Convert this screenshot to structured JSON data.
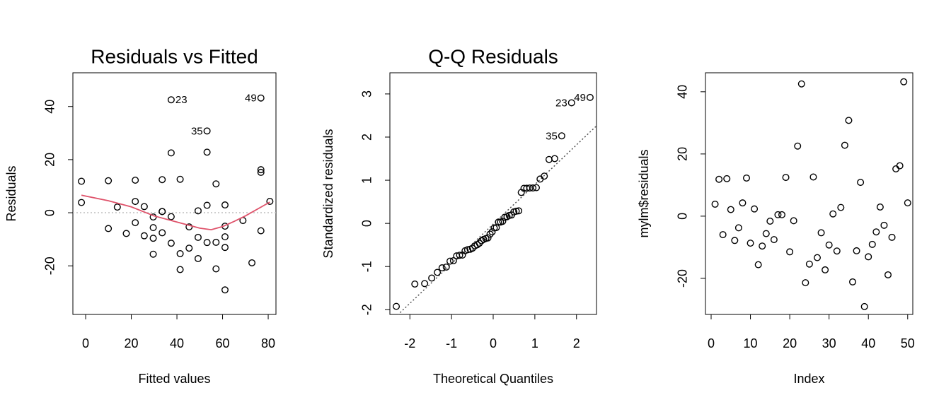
{
  "chart_data": [
    {
      "type": "scatter",
      "title": "Residuals vs Fitted",
      "x_label": "Fitted values",
      "y_label": "Residuals",
      "color": "#000000",
      "x": [
        -1.849,
        -1.849,
        9.948,
        9.948,
        13.88,
        17.813,
        21.745,
        21.745,
        21.745,
        25.677,
        25.677,
        29.61,
        29.61,
        29.61,
        29.61,
        33.542,
        33.542,
        33.542,
        33.542,
        37.474,
        37.474,
        37.474,
        37.474,
        41.407,
        41.407,
        41.407,
        45.339,
        45.339,
        49.272,
        49.272,
        49.272,
        53.204,
        53.204,
        53.204,
        53.204,
        57.136,
        57.136,
        57.136,
        61.069,
        61.069,
        61.069,
        61.069,
        61.069,
        68.934,
        72.866,
        76.798,
        76.798,
        76.798,
        76.798,
        80.731
      ],
      "y": [
        3.849,
        11.849,
        -5.948,
        12.052,
        2.12,
        -7.813,
        -3.745,
        4.255,
        12.255,
        -8.677,
        2.323,
        -15.61,
        -9.61,
        -5.61,
        -1.61,
        -7.542,
        0.458,
        0.458,
        12.458,
        -11.474,
        -1.474,
        22.526,
        42.526,
        -21.407,
        -15.407,
        12.593,
        -13.339,
        -5.339,
        -17.272,
        -9.272,
        0.728,
        -11.204,
        2.796,
        22.796,
        30.796,
        -21.136,
        -11.136,
        10.864,
        -29.069,
        -13.069,
        -9.069,
        -5.069,
        2.931,
        -2.934,
        -18.866,
        -6.798,
        15.202,
        16.202,
        43.202,
        4.269
      ],
      "point_labels": [
        null,
        null,
        null,
        null,
        null,
        null,
        null,
        null,
        null,
        null,
        null,
        null,
        null,
        null,
        null,
        null,
        null,
        null,
        null,
        null,
        null,
        null,
        "23",
        null,
        null,
        null,
        null,
        null,
        null,
        null,
        null,
        null,
        null,
        null,
        "35",
        null,
        null,
        null,
        null,
        null,
        null,
        null,
        null,
        null,
        null,
        null,
        null,
        null,
        "49",
        null
      ],
      "smooth": {
        "color": "#DF536B",
        "x": [
          -1.849,
          10,
          20,
          30,
          40,
          50,
          55,
          60,
          65,
          70,
          80.731
        ],
        "y": [
          6.6,
          4.5,
          2.2,
          -1.2,
          -3.5,
          -5.8,
          -6.4,
          -5.2,
          -3.3,
          -1.2,
          4.0
        ]
      },
      "hline": 0,
      "xlim": [
        -5.6,
        83.4
      ],
      "ylim": [
        -38.3,
        52.7
      ],
      "xticks": [
        0,
        20,
        40,
        60,
        80
      ],
      "yticks": [
        -20,
        0,
        20,
        40
      ]
    },
    {
      "type": "qq",
      "title": "Q-Q Residuals",
      "x_label": "Theoretical Quantiles",
      "y_label": "Standardized residuals",
      "color": "#000000",
      "x": [
        -2.326,
        -1.881,
        -1.645,
        -1.476,
        -1.341,
        -1.227,
        -1.126,
        -1.036,
        -0.954,
        -0.878,
        -0.806,
        -0.739,
        -0.674,
        -0.613,
        -0.553,
        -0.496,
        -0.44,
        -0.385,
        -0.332,
        -0.279,
        -0.228,
        -0.176,
        -0.126,
        -0.075,
        -0.025,
        0.025,
        0.075,
        0.126,
        0.176,
        0.228,
        0.279,
        0.332,
        0.385,
        0.44,
        0.496,
        0.553,
        0.613,
        0.674,
        0.739,
        0.806,
        0.878,
        0.954,
        1.036,
        1.126,
        1.227,
        1.341,
        1.476,
        1.645,
        1.881,
        2.326
      ],
      "y": [
        -1.924,
        -1.406,
        -1.395,
        -1.267,
        -1.136,
        -1.03,
        -1.012,
        -0.876,
        -0.865,
        -0.754,
        -0.738,
        -0.735,
        -0.634,
        -0.61,
        -0.6,
        -0.574,
        -0.521,
        -0.496,
        -0.459,
        -0.401,
        -0.37,
        -0.351,
        -0.336,
        -0.249,
        -0.196,
        -0.106,
        -0.097,
        0.03,
        0.03,
        0.048,
        0.142,
        0.154,
        0.184,
        0.194,
        0.266,
        0.283,
        0.291,
        0.717,
        0.813,
        0.814,
        0.819,
        0.82,
        0.827,
        1.027,
        1.095,
        1.481,
        1.501,
        2.028,
        2.795,
        2.919
      ],
      "point_labels": [
        null,
        null,
        null,
        null,
        null,
        null,
        null,
        null,
        null,
        null,
        null,
        null,
        null,
        null,
        null,
        null,
        null,
        null,
        null,
        null,
        null,
        null,
        null,
        null,
        null,
        null,
        null,
        null,
        null,
        null,
        null,
        null,
        null,
        null,
        null,
        null,
        null,
        null,
        null,
        null,
        null,
        null,
        null,
        null,
        null,
        null,
        null,
        "35",
        "23",
        "49"
      ],
      "ref_line": {
        "color": "#555555",
        "intercept": -0.017,
        "slope": 0.918
      },
      "xlim": [
        -2.48,
        2.48
      ],
      "ylim": [
        -2.11,
        3.49
      ],
      "xticks": [
        -2,
        -1,
        0,
        1,
        2
      ],
      "yticks": [
        -2,
        -1,
        0,
        1,
        2,
        3
      ]
    },
    {
      "type": "scatter",
      "x_label": "Index",
      "y_label": "mylm$residuals",
      "color": "#000000",
      "x": [
        1,
        2,
        3,
        4,
        5,
        6,
        7,
        8,
        9,
        10,
        11,
        12,
        13,
        14,
        15,
        16,
        17,
        18,
        19,
        20,
        21,
        22,
        23,
        24,
        25,
        26,
        27,
        28,
        29,
        30,
        31,
        32,
        33,
        34,
        35,
        36,
        37,
        38,
        39,
        40,
        41,
        42,
        43,
        44,
        45,
        46,
        47,
        48,
        49,
        50
      ],
      "y": [
        3.849,
        11.849,
        -5.948,
        12.052,
        2.12,
        -7.813,
        -3.745,
        4.255,
        12.255,
        -8.677,
        2.323,
        -15.61,
        -9.61,
        -5.61,
        -1.61,
        -7.542,
        0.458,
        0.458,
        12.458,
        -11.474,
        -1.474,
        22.526,
        42.526,
        -21.407,
        -15.407,
        12.593,
        -13.339,
        -5.339,
        -17.272,
        -9.272,
        0.728,
        -11.204,
        2.796,
        22.796,
        30.796,
        -21.136,
        -11.136,
        10.864,
        -29.069,
        -13.069,
        -9.069,
        -5.069,
        2.931,
        -2.934,
        -18.866,
        -6.798,
        15.202,
        16.202,
        43.202,
        4.269
      ],
      "xlim": [
        -1.44,
        51.3
      ],
      "ylim": [
        -31.6,
        46.1
      ],
      "xticks": [
        0,
        10,
        20,
        30,
        40,
        50
      ],
      "yticks": [
        -20,
        0,
        20,
        40
      ]
    }
  ]
}
